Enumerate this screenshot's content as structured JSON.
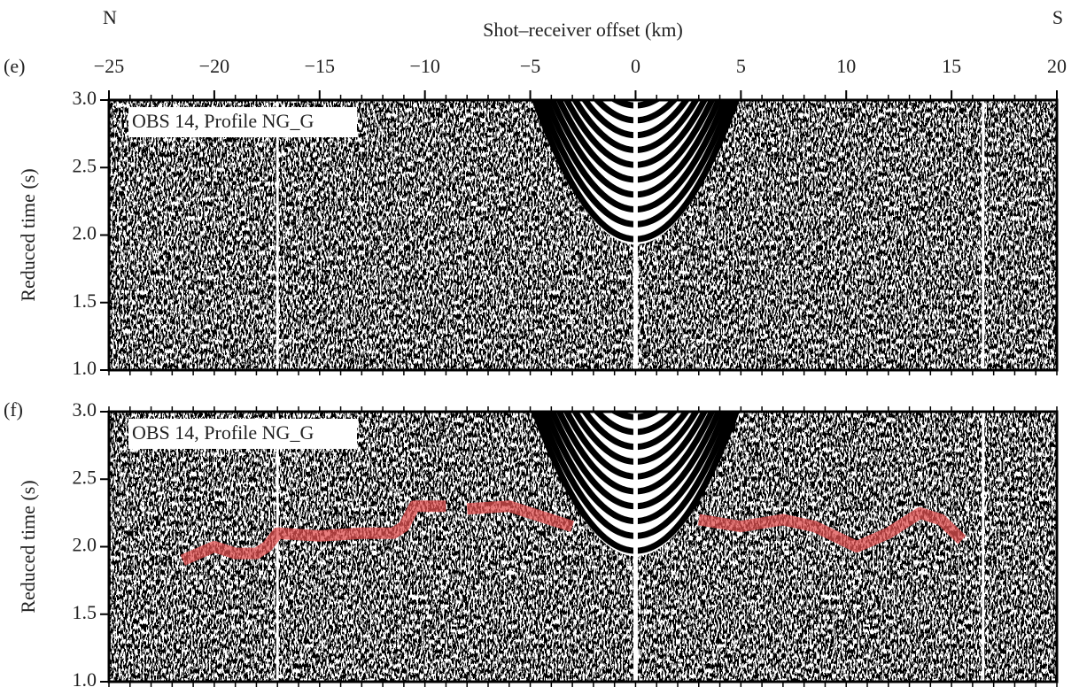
{
  "chart_data": [
    {
      "type": "seismic",
      "panel": "(e)",
      "title": "Shot–receiver offset (km)",
      "left_label": "N",
      "right_label": "S",
      "text_box": "OBS 14, Profile NG_G",
      "ylabel": "Reduced time (s)",
      "xlim": [
        -25,
        20
      ],
      "ylim": [
        1,
        3
      ],
      "xminor": 1,
      "xticks": [
        {
          "value": -25,
          "label": "−25"
        },
        {
          "value": -20,
          "label": "−20"
        },
        {
          "value": -15,
          "label": "−15"
        },
        {
          "value": -10,
          "label": "−10"
        },
        {
          "value": -5,
          "label": "−5"
        },
        0,
        5,
        10,
        15,
        20
      ],
      "yticks": [
        {
          "value": 1,
          "label": "1.0"
        },
        1.5,
        {
          "value": 2,
          "label": "2.0"
        },
        2.5,
        {
          "value": 3,
          "label": "3.0"
        }
      ]
    },
    {
      "type": "seismic",
      "panel": "(f)",
      "text_box": "OBS 14, Profile NG_G",
      "ylabel": "Reduced time (s)",
      "xlim": [
        -25,
        20
      ],
      "ylim": [
        1,
        3
      ],
      "xminor": 1,
      "yticks": [
        {
          "value": 1,
          "label": "1.0"
        },
        1.5,
        {
          "value": 2,
          "label": "2.0"
        },
        2.5,
        {
          "value": 3,
          "label": "3.0"
        }
      ],
      "series": [
        {
          "color": "#e05050",
          "x": [
            -21.5,
            -20,
            -19,
            -18,
            -17.5,
            -17,
            -15,
            -13,
            -11.5,
            -11,
            -10.5,
            -9.5,
            -9,
            -8.5,
            -8,
            -6,
            -4,
            -3,
            0,
            3,
            5,
            7,
            8.5,
            10.5,
            12,
            13.5,
            14.5,
            15.5
          ],
          "values": [
            1.9,
            2.0,
            1.95,
            1.95,
            2.0,
            2.1,
            2.08,
            2.1,
            2.1,
            2.15,
            2.3,
            2.3,
            2.3,
            null,
            2.28,
            2.3,
            2.2,
            2.15,
            null,
            2.2,
            2.15,
            2.2,
            2.15,
            2.0,
            2.1,
            2.25,
            2.2,
            2.05
          ]
        }
      ]
    }
  ]
}
